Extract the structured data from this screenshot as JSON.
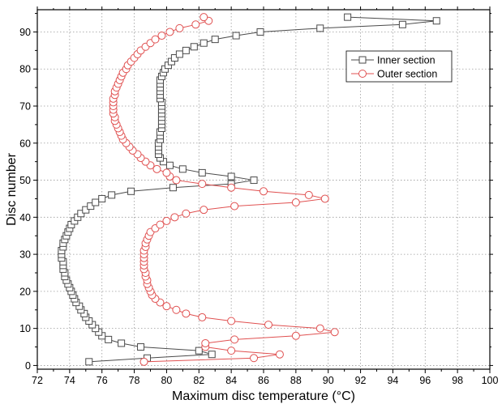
{
  "chart_data": {
    "type": "line",
    "xlabel": "Maximum disc temperature (°C)",
    "ylabel": "Disc number",
    "xlim": [
      72,
      100
    ],
    "ylim": [
      -1,
      96
    ],
    "x_ticks": [
      72,
      74,
      76,
      78,
      80,
      82,
      84,
      86,
      88,
      90,
      92,
      94,
      96,
      98,
      100
    ],
    "y_ticks": [
      0,
      10,
      20,
      30,
      40,
      50,
      60,
      70,
      80,
      90
    ],
    "grid": true,
    "legend_position": "top-right",
    "series": [
      {
        "name": "Inner section",
        "color": "#4a4a4a",
        "marker": "square",
        "points": [
          [
            75.2,
            1
          ],
          [
            78.8,
            2
          ],
          [
            82.8,
            3
          ],
          [
            82.0,
            4
          ],
          [
            78.4,
            5
          ],
          [
            77.2,
            6
          ],
          [
            76.4,
            7
          ],
          [
            76.0,
            8
          ],
          [
            75.8,
            9
          ],
          [
            75.6,
            10
          ],
          [
            75.4,
            11
          ],
          [
            75.2,
            12
          ],
          [
            75.0,
            13
          ],
          [
            74.9,
            14
          ],
          [
            74.7,
            15
          ],
          [
            74.6,
            16
          ],
          [
            74.4,
            17
          ],
          [
            74.3,
            18
          ],
          [
            74.2,
            19
          ],
          [
            74.1,
            20
          ],
          [
            74.0,
            21
          ],
          [
            73.9,
            22
          ],
          [
            73.8,
            23
          ],
          [
            73.7,
            24
          ],
          [
            73.7,
            25
          ],
          [
            73.6,
            26
          ],
          [
            73.6,
            27
          ],
          [
            73.6,
            28
          ],
          [
            73.5,
            29
          ],
          [
            73.5,
            30
          ],
          [
            73.5,
            31
          ],
          [
            73.6,
            32
          ],
          [
            73.6,
            33
          ],
          [
            73.7,
            34
          ],
          [
            73.8,
            35
          ],
          [
            73.9,
            36
          ],
          [
            74.0,
            37
          ],
          [
            74.1,
            38
          ],
          [
            74.3,
            39
          ],
          [
            74.5,
            40
          ],
          [
            74.7,
            41
          ],
          [
            75.0,
            42
          ],
          [
            75.3,
            43
          ],
          [
            75.6,
            44
          ],
          [
            76.0,
            45
          ],
          [
            76.6,
            46
          ],
          [
            77.8,
            47
          ],
          [
            80.4,
            48
          ],
          [
            84.0,
            49
          ],
          [
            85.4,
            50
          ],
          [
            84.0,
            51
          ],
          [
            82.2,
            52
          ],
          [
            81.0,
            53
          ],
          [
            80.2,
            54
          ],
          [
            79.8,
            55
          ],
          [
            79.6,
            56
          ],
          [
            79.5,
            57
          ],
          [
            79.5,
            58
          ],
          [
            79.5,
            59
          ],
          [
            79.5,
            60
          ],
          [
            79.6,
            61
          ],
          [
            79.6,
            62
          ],
          [
            79.6,
            63
          ],
          [
            79.7,
            64
          ],
          [
            79.7,
            65
          ],
          [
            79.7,
            66
          ],
          [
            79.7,
            67
          ],
          [
            79.7,
            68
          ],
          [
            79.7,
            69
          ],
          [
            79.7,
            70
          ],
          [
            79.7,
            71
          ],
          [
            79.6,
            72
          ],
          [
            79.6,
            73
          ],
          [
            79.6,
            74
          ],
          [
            79.6,
            75
          ],
          [
            79.6,
            76
          ],
          [
            79.6,
            77
          ],
          [
            79.7,
            78
          ],
          [
            79.8,
            79
          ],
          [
            79.9,
            80
          ],
          [
            80.1,
            81
          ],
          [
            80.3,
            82
          ],
          [
            80.5,
            83
          ],
          [
            80.8,
            84
          ],
          [
            81.2,
            85
          ],
          [
            81.7,
            86
          ],
          [
            82.3,
            87
          ],
          [
            83.0,
            88
          ],
          [
            84.3,
            89
          ],
          [
            85.8,
            90
          ],
          [
            89.5,
            91
          ],
          [
            94.6,
            92
          ],
          [
            96.7,
            93
          ],
          [
            91.2,
            94
          ]
        ]
      },
      {
        "name": "Outer section",
        "color": "#e05050",
        "marker": "circle",
        "points": [
          [
            78.6,
            1
          ],
          [
            85.4,
            2
          ],
          [
            87.0,
            3
          ],
          [
            84.0,
            4
          ],
          [
            82.4,
            5
          ],
          [
            82.4,
            6
          ],
          [
            84.2,
            7
          ],
          [
            88.0,
            8
          ],
          [
            90.4,
            9
          ],
          [
            89.5,
            10
          ],
          [
            86.3,
            11
          ],
          [
            84.0,
            12
          ],
          [
            82.2,
            13
          ],
          [
            81.2,
            14
          ],
          [
            80.6,
            15
          ],
          [
            80.0,
            16
          ],
          [
            79.6,
            17
          ],
          [
            79.3,
            18
          ],
          [
            79.1,
            19
          ],
          [
            79.0,
            20
          ],
          [
            78.9,
            21
          ],
          [
            78.8,
            22
          ],
          [
            78.8,
            23
          ],
          [
            78.7,
            24
          ],
          [
            78.7,
            25
          ],
          [
            78.6,
            26
          ],
          [
            78.6,
            27
          ],
          [
            78.6,
            28
          ],
          [
            78.6,
            29
          ],
          [
            78.6,
            30
          ],
          [
            78.6,
            31
          ],
          [
            78.7,
            32
          ],
          [
            78.7,
            33
          ],
          [
            78.8,
            34
          ],
          [
            78.9,
            35
          ],
          [
            79.0,
            36
          ],
          [
            79.3,
            37
          ],
          [
            79.6,
            38
          ],
          [
            80.0,
            39
          ],
          [
            80.5,
            40
          ],
          [
            81.2,
            41
          ],
          [
            82.3,
            42
          ],
          [
            84.2,
            43
          ],
          [
            88.0,
            44
          ],
          [
            89.8,
            45
          ],
          [
            88.8,
            46
          ],
          [
            86.0,
            47
          ],
          [
            84.0,
            48
          ],
          [
            82.2,
            49
          ],
          [
            80.6,
            50
          ],
          [
            80.2,
            51
          ],
          [
            80.0,
            52
          ],
          [
            79.4,
            53
          ],
          [
            79.0,
            54
          ],
          [
            78.7,
            55
          ],
          [
            78.4,
            56
          ],
          [
            78.2,
            57
          ],
          [
            77.9,
            58
          ],
          [
            77.7,
            59
          ],
          [
            77.5,
            60
          ],
          [
            77.3,
            61
          ],
          [
            77.2,
            62
          ],
          [
            77.1,
            63
          ],
          [
            77.0,
            64
          ],
          [
            76.9,
            65
          ],
          [
            76.8,
            66
          ],
          [
            76.8,
            67
          ],
          [
            76.7,
            68
          ],
          [
            76.7,
            69
          ],
          [
            76.7,
            70
          ],
          [
            76.7,
            71
          ],
          [
            76.7,
            72
          ],
          [
            76.8,
            73
          ],
          [
            76.8,
            74
          ],
          [
            76.9,
            75
          ],
          [
            77.0,
            76
          ],
          [
            77.1,
            77
          ],
          [
            77.2,
            78
          ],
          [
            77.3,
            79
          ],
          [
            77.5,
            80
          ],
          [
            77.6,
            81
          ],
          [
            77.8,
            82
          ],
          [
            78.0,
            83
          ],
          [
            78.2,
            84
          ],
          [
            78.4,
            85
          ],
          [
            78.7,
            86
          ],
          [
            79.0,
            87
          ],
          [
            79.3,
            88
          ],
          [
            79.7,
            89
          ],
          [
            80.2,
            90
          ],
          [
            80.8,
            91
          ],
          [
            81.8,
            92
          ],
          [
            82.6,
            93
          ],
          [
            82.3,
            94
          ]
        ]
      }
    ]
  }
}
